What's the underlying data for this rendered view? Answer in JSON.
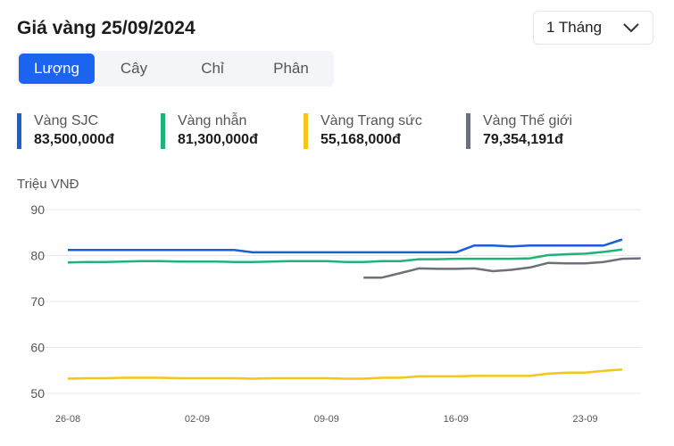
{
  "header": {
    "title": "Giá vàng 25/09/2024",
    "period": "1 Tháng"
  },
  "tabs": [
    {
      "label": "Lượng",
      "active": true
    },
    {
      "label": "Cây"
    },
    {
      "label": "Chỉ"
    },
    {
      "label": "Phân"
    }
  ],
  "legend": [
    {
      "name": "Vàng SJC",
      "value": "83,500,000đ",
      "color": "#1a5fd8"
    },
    {
      "name": "Vàng nhẫn",
      "value": "81,300,000đ",
      "color": "#1fb37a"
    },
    {
      "name": "Vàng Trang sức",
      "value": "55,168,000đ",
      "color": "#f5c518"
    },
    {
      "name": "Vàng Thế giới",
      "value": "79,354,191đ",
      "color": "#6b717a"
    }
  ],
  "chart_data": {
    "type": "line",
    "ylabel": "Triệu VNĐ",
    "ylim": [
      50,
      90
    ],
    "yticks": [
      50,
      60,
      70,
      80,
      90
    ],
    "x": [
      "26-08",
      "27-08",
      "28-08",
      "29-08",
      "30-08",
      "31-08",
      "01-09",
      "02-09",
      "03-09",
      "04-09",
      "05-09",
      "06-09",
      "07-09",
      "08-09",
      "09-09",
      "10-09",
      "11-09",
      "12-09",
      "13-09",
      "14-09",
      "15-09",
      "16-09",
      "17-09",
      "18-09",
      "19-09",
      "20-09",
      "21-09",
      "22-09",
      "23-09",
      "24-09",
      "25-09",
      "26-09"
    ],
    "xticks": [
      "26-08",
      "02-09",
      "09-09",
      "16-09",
      "23-09"
    ],
    "series": [
      {
        "name": "Vàng SJC",
        "color": "#1a5fd8",
        "values": [
          81.2,
          81.2,
          81.2,
          81.2,
          81.2,
          81.2,
          81.2,
          81.2,
          81.2,
          81.2,
          80.7,
          80.7,
          80.7,
          80.7,
          80.7,
          80.7,
          80.7,
          80.7,
          80.7,
          80.7,
          80.7,
          80.7,
          82.2,
          82.2,
          82.0,
          82.2,
          82.2,
          82.2,
          82.2,
          82.2,
          83.5,
          null
        ]
      },
      {
        "name": "Vàng nhẫn",
        "color": "#1fb37a",
        "values": [
          78.5,
          78.6,
          78.6,
          78.7,
          78.8,
          78.8,
          78.7,
          78.7,
          78.7,
          78.6,
          78.6,
          78.7,
          78.8,
          78.8,
          78.8,
          78.6,
          78.6,
          78.8,
          78.8,
          79.2,
          79.2,
          79.3,
          79.3,
          79.3,
          79.3,
          79.4,
          80.1,
          80.3,
          80.4,
          80.8,
          81.3,
          null
        ]
      },
      {
        "name": "Vàng Trang sức",
        "color": "#f5c518",
        "values": [
          53.2,
          53.3,
          53.3,
          53.4,
          53.4,
          53.4,
          53.3,
          53.3,
          53.3,
          53.3,
          53.2,
          53.3,
          53.3,
          53.3,
          53.3,
          53.2,
          53.2,
          53.4,
          53.4,
          53.7,
          53.7,
          53.7,
          53.8,
          53.8,
          53.8,
          53.8,
          54.3,
          54.5,
          54.5,
          54.9,
          55.2,
          null
        ]
      },
      {
        "name": "Vàng Thế giới",
        "color": "#6b717a",
        "values": [
          null,
          null,
          null,
          null,
          null,
          null,
          null,
          null,
          null,
          null,
          null,
          null,
          null,
          null,
          null,
          null,
          75.2,
          75.2,
          76.2,
          77.2,
          77.1,
          77.1,
          77.2,
          76.6,
          76.9,
          77.4,
          78.4,
          78.3,
          78.3,
          78.6,
          79.3,
          79.4
        ]
      }
    ]
  }
}
